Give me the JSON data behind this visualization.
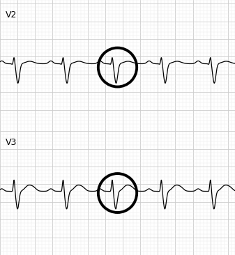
{
  "bg_color": "#ffffff",
  "grid_major_color": "#cccccc",
  "grid_minor_color": "#e8e8e8",
  "line_color": "#000000",
  "label_v2": "V2",
  "label_v3": "V3",
  "label_fontsize": 9,
  "fig_width": 3.37,
  "fig_height": 3.66,
  "dpi": 100,
  "circle_color": "#000000",
  "circle_lw": 2.8,
  "ecg_lw": 0.9
}
